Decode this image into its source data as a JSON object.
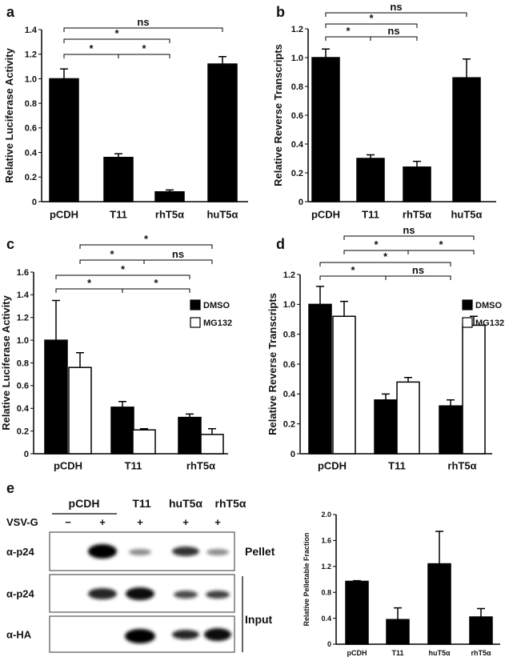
{
  "chart_data": [
    {
      "type": "bar",
      "panel": "a",
      "y_label": "Relative Luciferase Activity",
      "categories": [
        "pCDH",
        "T11",
        "rhT5α",
        "huT5α"
      ],
      "values": [
        1.0,
        0.36,
        0.08,
        1.12
      ],
      "errors": [
        0.08,
        0.03,
        0.015,
        0.06
      ],
      "color": "#000000",
      "ylim": [
        0,
        1.4
      ],
      "yticks": [
        0,
        0.2,
        0.4,
        0.6,
        0.8,
        {
          "value": 1,
          "label": "1.0"
        },
        1.2,
        1.4
      ],
      "annotations": [
        "ns",
        "*",
        "*",
        "*"
      ]
    },
    {
      "type": "bar",
      "panel": "b",
      "y_label": "Relative Reverse Transcripts",
      "categories": [
        "pCDH",
        "T11",
        "rhT5α",
        "huT5α"
      ],
      "values": [
        1.0,
        0.3,
        0.24,
        0.86
      ],
      "errors": [
        0.06,
        0.025,
        0.04,
        0.13
      ],
      "color": "#000000",
      "ylim": [
        0,
        1.2
      ],
      "yticks": [
        0,
        0.2,
        0.4,
        0.6,
        0.8,
        {
          "value": 1,
          "label": "1.0"
        },
        1.2
      ],
      "annotations": [
        "ns",
        "*",
        "*",
        "ns"
      ]
    },
    {
      "type": "bar",
      "panel": "c",
      "y_label": "Relative Luciferase Activity",
      "categories": [
        "pCDH",
        "T11",
        "rhT5α"
      ],
      "series": [
        {
          "name": "DMSO",
          "color": "#000000",
          "values": [
            1.0,
            0.41,
            0.32
          ],
          "errors": [
            0.35,
            0.05,
            0.03
          ]
        },
        {
          "name": "MG132",
          "color": "#ffffff",
          "values": [
            0.76,
            0.21,
            0.17
          ],
          "errors": [
            0.13,
            0.01,
            0.05
          ]
        }
      ],
      "ylim": [
        0,
        1.6
      ],
      "yticks": [
        0,
        0.2,
        0.4,
        0.6,
        0.8,
        {
          "value": 1,
          "label": "1.0"
        },
        1.2,
        1.4,
        1.6
      ],
      "annotations": [
        "*",
        "*",
        "ns",
        "*",
        "*",
        "*"
      ]
    },
    {
      "type": "bar",
      "panel": "d",
      "y_label": "Relative Reverse Transcripts",
      "categories": [
        "pCDH",
        "T11",
        "rhT5α"
      ],
      "series": [
        {
          "name": "DMSO",
          "color": "#000000",
          "values": [
            1.0,
            0.36,
            0.32
          ],
          "errors": [
            0.12,
            0.04,
            0.04
          ]
        },
        {
          "name": "MG132",
          "color": "#ffffff",
          "values": [
            0.92,
            0.48,
            0.86
          ],
          "errors": [
            0.1,
            0.03,
            0.06
          ]
        }
      ],
      "ylim": [
        0,
        1.2
      ],
      "yticks": [
        0,
        0.2,
        0.4,
        0.6,
        0.8,
        {
          "value": 1,
          "label": "1.0"
        },
        1.2
      ],
      "annotations": [
        "ns",
        "*",
        "*",
        "*",
        "*",
        "ns"
      ]
    },
    {
      "type": "bar",
      "y_label": "Relative Pelletable Fraction",
      "categories": [
        "pCDH",
        "T11",
        "huT5α",
        "rhT5α"
      ],
      "values": [
        0.97,
        0.38,
        1.24,
        0.42
      ],
      "errors": [
        0.01,
        0.18,
        0.5,
        0.13
      ],
      "color": "#000000",
      "ylim": [
        0,
        2.0
      ],
      "yticks": [
        0,
        0.4,
        0.8,
        1.2,
        1.6,
        {
          "value": 2,
          "label": "2.0"
        }
      ],
      "annotations": []
    }
  ],
  "blot": {
    "panel": "e",
    "groups": [
      "pCDH",
      "T11",
      "huT5α",
      "rhT5α"
    ],
    "treatment": "VSV-G",
    "signs": [
      "−",
      "+",
      "+",
      "+",
      "+"
    ],
    "rows": [
      "α-p24",
      "α-p24",
      "α-HA"
    ],
    "sections": [
      "Pellet",
      "Input"
    ]
  }
}
